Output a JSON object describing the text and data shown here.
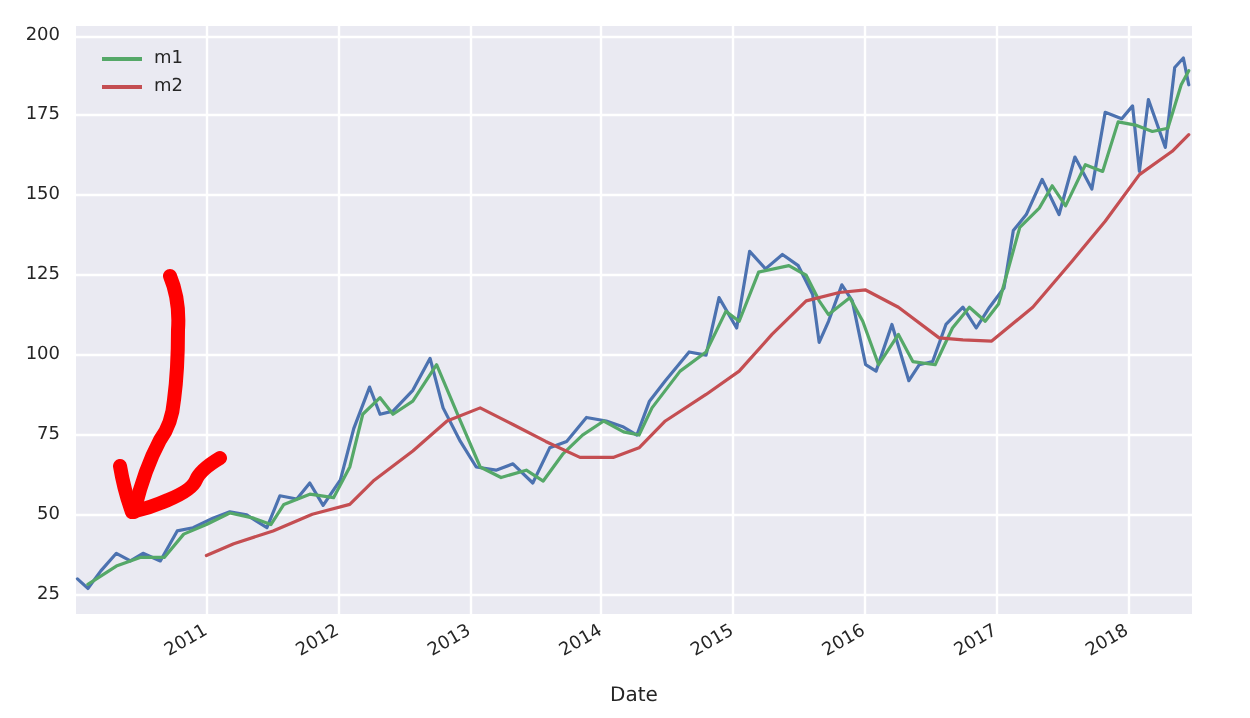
{
  "chart_data": {
    "type": "line",
    "xlabel": "Date",
    "legend": "top left",
    "grid": true,
    "marker": "none",
    "line_style": "solid",
    "xlim": [
      "2010-01-04",
      "2018-06-29"
    ],
    "xticks": [
      "2011",
      "2012",
      "2013",
      "2014",
      "2015",
      "2016",
      "2017",
      "2018"
    ],
    "ylim": [
      19,
      203
    ],
    "yticks": [
      25,
      50,
      75,
      100,
      125,
      150,
      175,
      200
    ],
    "series": [
      {
        "color": "#4c72b0",
        "x": [
          "2010-01-08",
          "2010-02-06",
          "2010-03-14",
          "2010-04-26",
          "2010-06-04",
          "2010-07-09",
          "2010-08-26",
          "2010-10-12",
          "2010-11-25",
          "2011-01-19",
          "2011-03-07",
          "2011-04-23",
          "2011-06-18",
          "2011-07-24",
          "2011-09-09",
          "2011-10-15",
          "2011-11-21",
          "2012-01-08",
          "2012-02-14",
          "2012-03-29",
          "2012-04-27",
          "2012-06-02",
          "2012-07-27",
          "2012-09-13",
          "2012-10-19",
          "2012-12-06",
          "2013-01-19",
          "2013-03-15",
          "2013-05-01",
          "2013-06-25",
          "2013-08-11",
          "2013-09-27",
          "2013-11-21",
          "2014-01-15",
          "2014-03-04",
          "2014-04-10",
          "2014-05-15",
          "2014-06-28",
          "2014-09-02",
          "2014-10-19",
          "2014-11-24",
          "2015-01-12",
          "2015-02-17",
          "2015-04-02",
          "2015-05-19",
          "2015-07-02",
          "2015-08-11",
          "2015-08-29",
          "2015-09-24",
          "2015-10-31",
          "2015-11-29",
          "2016-01-05",
          "2016-02-03",
          "2016-03-18",
          "2016-05-04",
          "2016-06-02",
          "2016-07-09",
          "2016-08-15",
          "2016-10-01",
          "2016-11-07",
          "2016-12-14",
          "2017-01-23",
          "2017-02-18",
          "2017-03-26",
          "2017-05-09",
          "2017-06-25",
          "2017-08-08",
          "2017-09-24",
          "2017-10-31",
          "2017-12-16",
          "2018-01-15",
          "2018-02-03",
          "2018-02-28",
          "2018-04-16",
          "2018-05-12",
          "2018-06-05",
          "2018-06-20"
        ],
        "values": [
          30,
          27,
          32.5,
          38,
          35.6,
          38,
          35.6,
          45,
          46,
          49,
          51,
          50,
          46,
          56,
          55,
          60,
          53,
          61,
          77,
          90,
          81.5,
          82.5,
          89,
          99,
          83.5,
          73,
          65,
          64,
          66,
          60,
          71,
          73,
          80.5,
          79.4,
          77.5,
          75,
          85.6,
          92,
          101,
          100,
          118,
          108.5,
          132.5,
          127,
          131.5,
          128,
          119,
          104,
          110.6,
          122,
          117,
          97,
          95,
          109.6,
          92,
          97,
          98,
          109.6,
          115,
          108.5,
          115,
          121,
          139,
          144,
          155,
          144,
          162,
          152,
          176,
          174,
          178,
          157.5,
          180,
          165,
          190,
          193,
          184.6
        ]
      },
      {
        "name": "m1",
        "color": "#55a868",
        "x": [
          "2010-02-06",
          "2010-04-26",
          "2010-07-01",
          "2010-09-06",
          "2010-10-30",
          "2011-01-01",
          "2011-03-07",
          "2011-05-12",
          "2011-06-29",
          "2011-08-04",
          "2011-10-15",
          "2011-12-20",
          "2012-02-03",
          "2012-03-10",
          "2012-04-27",
          "2012-06-02",
          "2012-07-27",
          "2012-10-01",
          "2012-12-06",
          "2013-01-30",
          "2013-03-29",
          "2013-06-07",
          "2013-07-24",
          "2013-09-16",
          "2013-11-10",
          "2014-01-08",
          "2014-03-04",
          "2014-04-16",
          "2014-05-22",
          "2014-08-08",
          "2014-10-19",
          "2014-12-13",
          "2015-01-19",
          "2015-03-14",
          "2015-06-06",
          "2015-07-24",
          "2015-08-29",
          "2015-09-24",
          "2015-11-22",
          "2015-12-28",
          "2016-02-10",
          "2016-04-05",
          "2016-05-15",
          "2016-07-16",
          "2016-09-02",
          "2016-10-19",
          "2016-12-02",
          "2017-01-08",
          "2017-03-08",
          "2017-05-01",
          "2017-06-06",
          "2017-07-13",
          "2017-09-06",
          "2017-10-24",
          "2017-12-06",
          "2018-01-23",
          "2018-03-11",
          "2018-04-23",
          "2018-05-30",
          "2018-06-20"
        ],
        "values": [
          28.3,
          34,
          36.7,
          36.7,
          44,
          47,
          50.6,
          49,
          47,
          53.3,
          56.5,
          55.4,
          65,
          81.5,
          86.7,
          81.5,
          85.6,
          97,
          79.4,
          65,
          61.7,
          64,
          60.6,
          69,
          75,
          79.4,
          76,
          75,
          83.5,
          95,
          101,
          113.7,
          110.6,
          126,
          128,
          125,
          117,
          112.7,
          118,
          110.6,
          97,
          106.5,
          98,
          97,
          108.5,
          115,
          110.6,
          116,
          140,
          146,
          153,
          146.7,
          159.6,
          157.5,
          173,
          172,
          170,
          171,
          184.6,
          189
        ]
      },
      {
        "name": "m2",
        "color": "#c44e52",
        "x": [
          "2011-01-01",
          "2011-03-18",
          "2011-07-05",
          "2011-10-22",
          "2012-02-03",
          "2012-04-08",
          "2012-07-27",
          "2012-10-30",
          "2013-01-30",
          "2013-05-01",
          "2013-07-31",
          "2013-11-03",
          "2014-02-03",
          "2014-04-16",
          "2014-06-28",
          "2014-10-19",
          "2015-01-19",
          "2015-04-20",
          "2015-07-24",
          "2015-10-24",
          "2016-01-05",
          "2016-04-05",
          "2016-07-27",
          "2016-10-01",
          "2016-12-20",
          "2017-04-13",
          "2017-07-31",
          "2017-10-31",
          "2018-02-03",
          "2018-05-05",
          "2018-06-20"
        ],
        "values": [
          37.3,
          41,
          45,
          50.2,
          53.3,
          60.6,
          70,
          79.4,
          83.5,
          78.3,
          73,
          68,
          68,
          71,
          79.4,
          87.7,
          95,
          106.5,
          117,
          119.6,
          120.4,
          115,
          105.4,
          104.8,
          104.4,
          115,
          129.4,
          141.9,
          156.5,
          163.8,
          169
        ]
      }
    ]
  }
}
